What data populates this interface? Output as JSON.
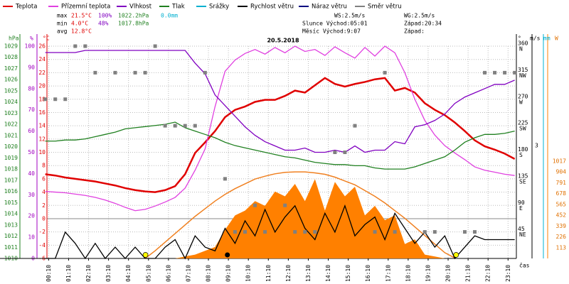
{
  "chart_data": {
    "type": "line",
    "title": "20.5.2018",
    "x": [
      0,
      30,
      60,
      90,
      120,
      150,
      180,
      210,
      240,
      270,
      300,
      330,
      360,
      390,
      420,
      450,
      480,
      510,
      540,
      570,
      600,
      630,
      660,
      690,
      720,
      750,
      780,
      810,
      840,
      870,
      900,
      930,
      960,
      990,
      1020,
      1050,
      1080,
      1110,
      1140,
      1170,
      1200,
      1230,
      1260,
      1290,
      1320,
      1350,
      1380,
      1410
    ],
    "xlim": [
      5,
      1415
    ],
    "xticks": [
      {
        "value": 10,
        "label": "00:10"
      },
      {
        "value": 70,
        "label": "01:10"
      },
      {
        "value": 130,
        "label": "02:10"
      },
      {
        "value": 190,
        "label": "03:10"
      },
      {
        "value": 250,
        "label": "04:10"
      },
      {
        "value": 310,
        "label": "05:10"
      },
      {
        "value": 370,
        "label": "06:10"
      },
      {
        "value": 430,
        "label": "07:10"
      },
      {
        "value": 490,
        "label": "08:10"
      },
      {
        "value": 550,
        "label": "09:10"
      },
      {
        "value": 610,
        "label": "10:10"
      },
      {
        "value": 670,
        "label": "11:10"
      },
      {
        "value": 730,
        "label": "12:10"
      },
      {
        "value": 790,
        "label": "13:10"
      },
      {
        "value": 850,
        "label": "14:10"
      },
      {
        "value": 910,
        "label": "15:10"
      },
      {
        "value": 970,
        "label": "16:10"
      },
      {
        "value": 1030,
        "label": "17:10"
      },
      {
        "value": 1090,
        "label": "18:10"
      },
      {
        "value": 1150,
        "label": "19:10"
      },
      {
        "value": 1210,
        "label": "20:10"
      },
      {
        "value": 1270,
        "label": "21:10"
      },
      {
        "value": 1330,
        "label": "22:10"
      },
      {
        "value": 1390,
        "label": "23:10"
      }
    ],
    "xlabel": "čas",
    "ylim": [
      -6,
      26
    ],
    "yticks": [
      -6,
      -4,
      -2,
      0,
      2,
      4,
      6,
      8,
      10,
      12,
      14,
      16,
      18,
      20,
      22,
      24,
      26
    ],
    "ylabel": "°C",
    "hum_lim": [
      0,
      100
    ],
    "hum_ticks": [
      0,
      10,
      20,
      30,
      40,
      50,
      60,
      70,
      80,
      90,
      100
    ],
    "hum_label": "%",
    "press_lim": [
      1010,
      1029
    ],
    "press_ticks": [
      1010,
      1011,
      1012,
      1013,
      1014,
      1015,
      1016,
      1017,
      1018,
      1019,
      1020,
      1021,
      1022,
      1023,
      1024,
      1025,
      1026,
      1027,
      1028,
      1029
    ],
    "press_label": "hPa",
    "dir_lim": [
      0,
      360
    ],
    "dir_ticks": [
      45,
      90,
      135,
      180,
      225,
      270,
      315,
      360
    ],
    "dir_labels": [
      "NE",
      "E",
      "SE",
      "S",
      "SW",
      "W",
      "NW",
      "N"
    ],
    "dir_label": "°",
    "wind_lim": [
      0,
      5.64
    ],
    "wind_ticks": [
      3
    ],
    "wind_label": "m/s",
    "rain_label": "mm",
    "radiation_lim": [
      0,
      2220
    ],
    "radiation_ticks": [
      113,
      226,
      339,
      452,
      565,
      678,
      791,
      904,
      1017
    ],
    "radiation_label": "W",
    "grid": true,
    "series": [
      {
        "name": "Teplota",
        "color": "#e00000",
        "axis": "y",
        "values": [
          6.7,
          6.5,
          6.2,
          6.0,
          5.8,
          5.6,
          5.3,
          5.0,
          4.6,
          4.3,
          4.1,
          4.0,
          4.3,
          4.9,
          6.7,
          9.9,
          11.5,
          13.2,
          15.3,
          16.4,
          16.9,
          17.6,
          17.9,
          17.9,
          18.5,
          19.3,
          19.0,
          20.1,
          21.2,
          20.3,
          19.9,
          20.3,
          20.6,
          21.0,
          21.2,
          19.3,
          19.7,
          19.0,
          17.4,
          16.4,
          15.6,
          14.5,
          13.2,
          11.8,
          10.9,
          10.4,
          9.8,
          9.0
        ]
      },
      {
        "name": "Přízemní teplota",
        "color": "#e040e0",
        "axis": "y",
        "values": [
          4.1,
          4.0,
          3.9,
          3.7,
          3.5,
          3.2,
          2.8,
          2.3,
          1.7,
          1.2,
          1.4,
          1.9,
          2.5,
          3.2,
          4.6,
          7.3,
          10.5,
          16.9,
          22.2,
          23.9,
          24.9,
          25.5,
          24.8,
          25.8,
          25.0,
          26.0,
          25.2,
          25.5,
          24.6,
          25.9,
          25.0,
          24.2,
          25.8,
          24.5,
          26.0,
          25.0,
          22.0,
          18.0,
          14.8,
          12.6,
          11.0,
          9.9,
          8.9,
          7.8,
          7.3,
          7.0,
          6.7,
          6.5
        ]
      },
      {
        "name": "Vlhkost",
        "color": "#8000c0",
        "axis": "hum",
        "values": [
          97,
          97,
          97,
          97,
          98,
          98,
          98,
          98,
          98,
          98,
          98,
          98,
          98,
          98,
          98,
          92,
          87,
          77,
          72,
          67,
          62,
          58,
          55,
          53,
          51,
          51,
          52,
          50,
          50,
          51,
          50,
          53,
          50,
          51,
          51,
          55,
          54,
          62,
          63,
          65,
          68,
          73,
          76,
          78,
          80,
          82,
          82,
          84
        ]
      },
      {
        "name": "Tlak",
        "color": "#208020",
        "axis": "press",
        "values": [
          1020.5,
          1020.5,
          1020.6,
          1020.6,
          1020.7,
          1020.9,
          1021.1,
          1021.3,
          1021.6,
          1021.7,
          1021.8,
          1021.9,
          1022.0,
          1022.2,
          1021.7,
          1021.4,
          1021.1,
          1020.8,
          1020.4,
          1020.1,
          1019.9,
          1019.7,
          1019.5,
          1019.3,
          1019.1,
          1019.0,
          1018.8,
          1018.6,
          1018.5,
          1018.4,
          1018.4,
          1018.3,
          1018.3,
          1018.1,
          1018.0,
          1018.0,
          1018.0,
          1018.2,
          1018.5,
          1018.8,
          1019.1,
          1019.7,
          1020.4,
          1020.8,
          1021.1,
          1021.1,
          1021.2,
          1021.4
        ]
      },
      {
        "name": "Srážky",
        "color": "#00b0d0"
      },
      {
        "name": "Rychlost větru",
        "color": "#000000",
        "axis": "wind",
        "values": [
          0,
          0,
          0.7,
          0.4,
          0,
          0.4,
          0,
          0.3,
          0,
          0.3,
          0,
          0,
          0.3,
          0.5,
          0,
          0.6,
          0.3,
          0.2,
          0.8,
          0.4,
          1.0,
          0.6,
          1.3,
          0.7,
          1.1,
          1.4,
          0.8,
          0.5,
          1.2,
          0.7,
          1.4,
          0.6,
          0.9,
          1.1,
          0.5,
          1.2,
          0.8,
          0.4,
          0.7,
          0.3,
          0.6,
          0,
          0.3,
          0.6,
          0.5,
          0.5,
          0.5,
          0.5
        ]
      },
      {
        "name": "Náraz větru",
        "color": "#000080"
      },
      {
        "name": "Směr větru",
        "color": "#808080",
        "axis": "dir",
        "values": [
          270,
          270,
          270,
          360,
          360,
          315,
          null,
          315,
          null,
          315,
          315,
          360,
          225,
          225,
          225,
          225,
          315,
          null,
          135,
          45,
          45,
          90,
          45,
          null,
          90,
          45,
          45,
          45,
          null,
          180,
          180,
          225,
          null,
          45,
          315,
          45,
          null,
          null,
          45,
          45,
          null,
          null,
          45,
          45,
          315,
          315,
          315,
          315
        ]
      }
    ],
    "radiation": {
      "color": "#ff8000",
      "values": [
        0,
        0,
        0,
        0,
        0,
        0,
        0,
        0,
        0,
        0,
        0,
        0,
        0,
        0,
        20,
        40,
        80,
        120,
        300,
        450,
        500,
        600,
        550,
        700,
        650,
        780,
        600,
        830,
        500,
        800,
        650,
        750,
        450,
        550,
        400,
        450,
        150,
        200,
        40,
        20,
        0,
        0,
        0,
        0,
        0,
        0,
        0,
        0
      ]
    },
    "radiation_max": {
      "color": "#f08020",
      "values": [
        null,
        null,
        null,
        null,
        null,
        null,
        null,
        null,
        null,
        null,
        0,
        80,
        170,
        260,
        350,
        440,
        520,
        600,
        670,
        730,
        780,
        830,
        860,
        885,
        900,
        905,
        905,
        895,
        880,
        850,
        810,
        770,
        710,
        650,
        580,
        500,
        420,
        330,
        240,
        150,
        60,
        5,
        null,
        null,
        null,
        null,
        null,
        null
      ]
    },
    "sun_marks": [
      301,
      1234
    ],
    "moon_marks": [
      547
    ],
    "stats": [
      [
        "max",
        "21.5°C",
        "100%",
        "1022.2hPa",
        "0.0mm"
      ],
      [
        "min",
        "4.0°C",
        "48%",
        "1017.8hPa"
      ],
      [
        "avg",
        "12.8°C"
      ]
    ],
    "info": [
      [
        "WS:2.5m/s",
        "WG:2.5m/s"
      ],
      [
        "Slunce Východ:05:01",
        "Západ:20:34"
      ],
      [
        "Měsíc Východ:9:07",
        "Západ:"
      ]
    ]
  }
}
